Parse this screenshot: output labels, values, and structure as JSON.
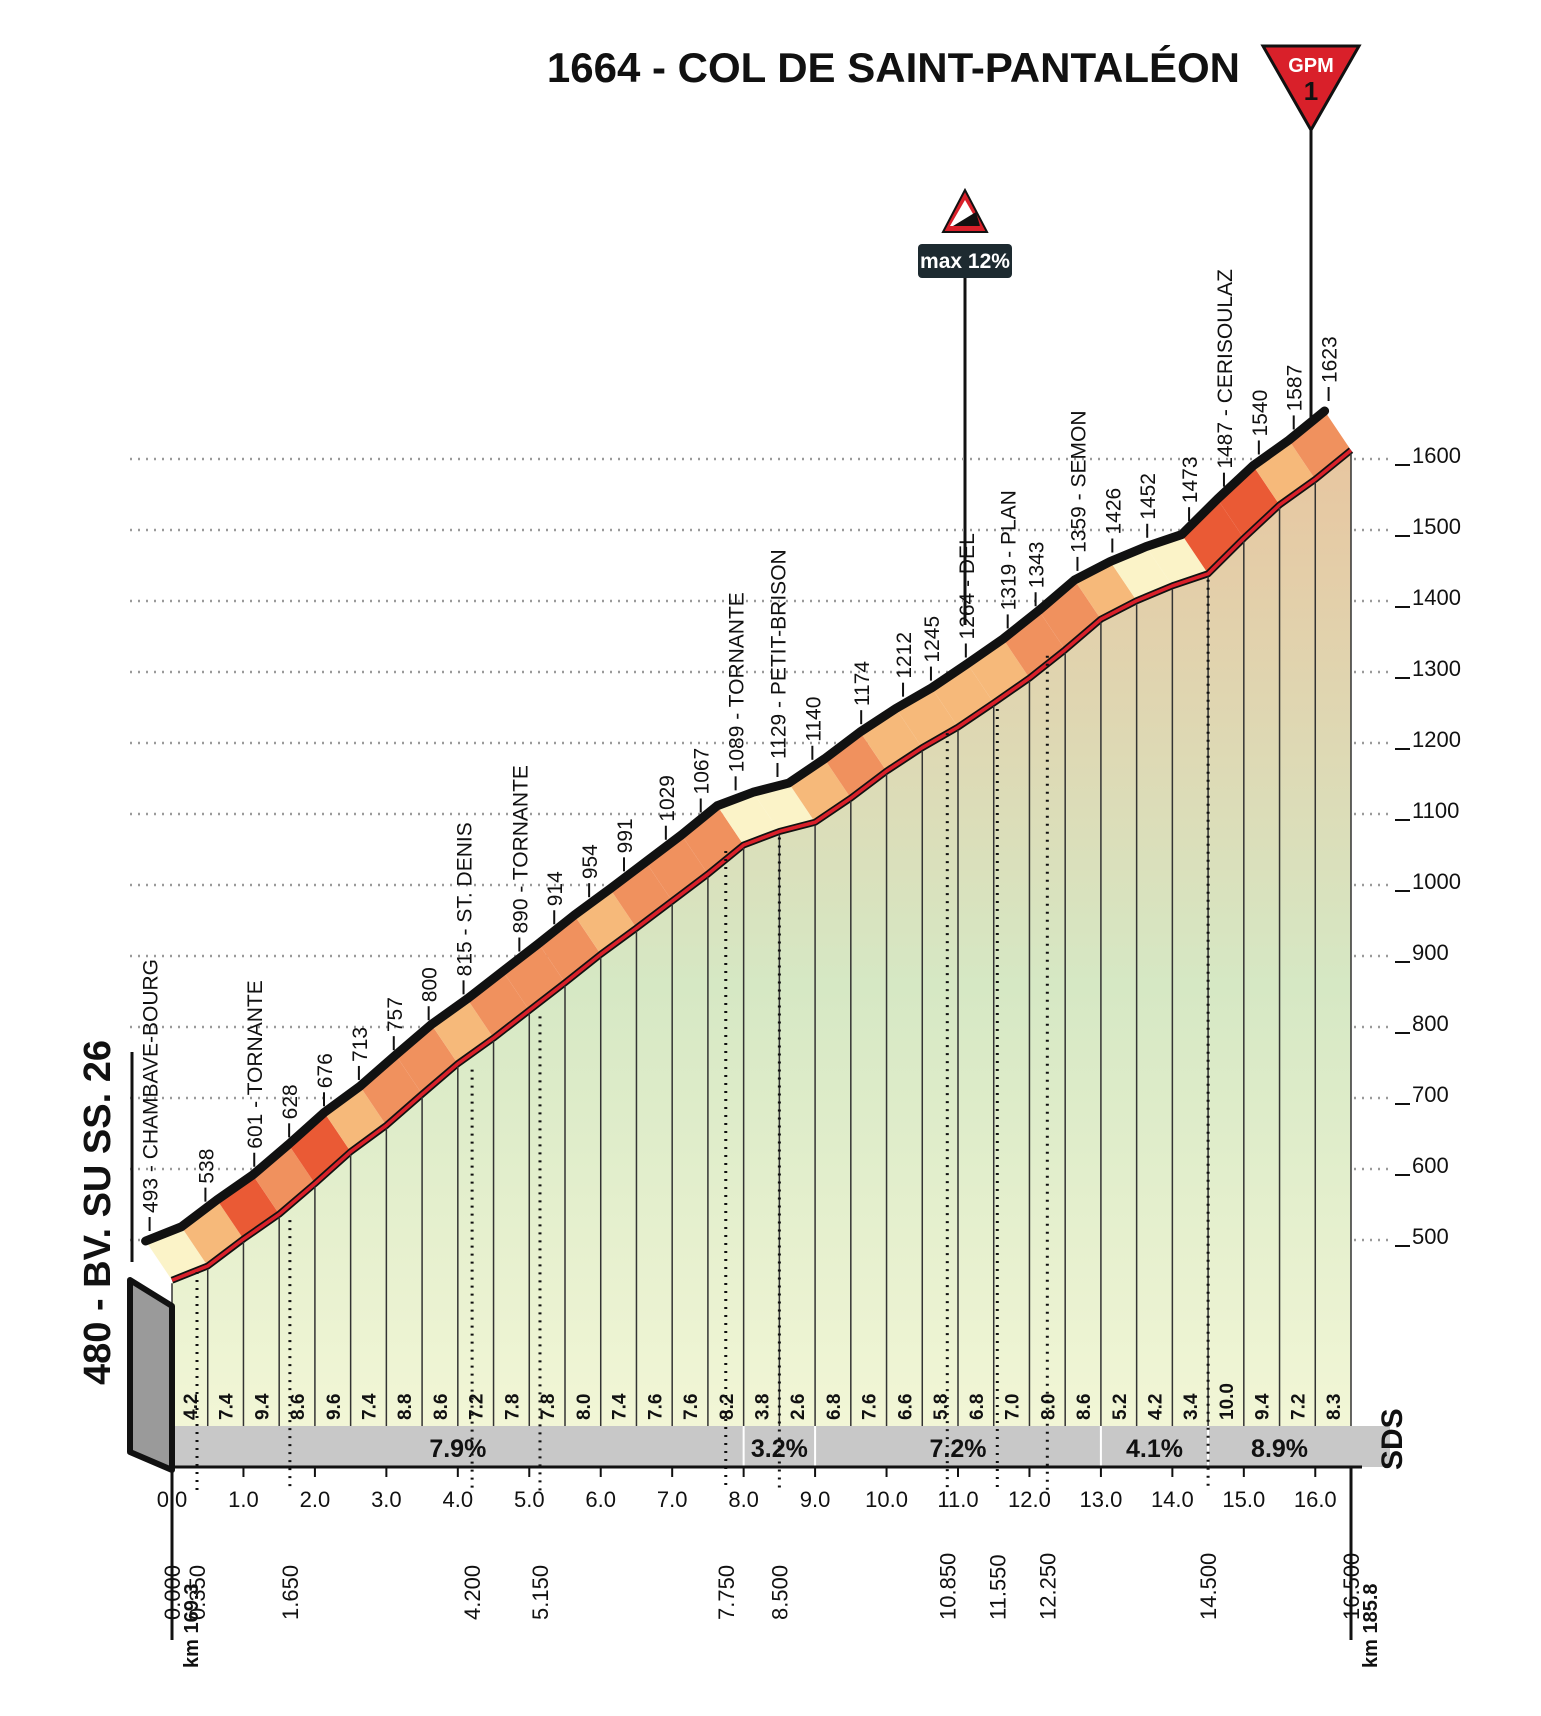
{
  "title": "1664 - COL DE SAINT-PANTALÉON",
  "gpm_badge": {
    "label": "GPM",
    "category": "1"
  },
  "max_gradient_label": "max 12%",
  "start_label": "480 - BV. SU SS. 26",
  "logo_text": "SDS",
  "colors": {
    "ink": "#111111",
    "road_red": "#d9202a",
    "band_light": "#fbf3c8",
    "band_mid": "#f6b97a",
    "band_orange": "#f0915e",
    "band_red": "#ea5a35",
    "summary_bar": "#c8c8c8",
    "area_top": "#e8c6a0",
    "area_mid": "#d6e8c4",
    "area_bottom": "#f2f6d6"
  },
  "chart_data": {
    "type": "area",
    "xlabel": "",
    "ylabel": "",
    "xlim": [
      0,
      16.5
    ],
    "ylim": [
      480,
      1664
    ],
    "grid": true,
    "x_ticks": [
      "0.0",
      "1.0",
      "2.0",
      "3.0",
      "4.0",
      "5.0",
      "6.0",
      "7.0",
      "8.0",
      "9.0",
      "10.0",
      "11.0",
      "12.0",
      "13.0",
      "14.0",
      "15.0",
      "16.0"
    ],
    "y_ticks": [
      "500",
      "600",
      "700",
      "800",
      "900",
      "1000",
      "1100",
      "1200",
      "1300",
      "1400",
      "1500",
      "1600"
    ],
    "profile": [
      {
        "km": 0.0,
        "alt": 480
      },
      {
        "km": 0.5,
        "alt": 500
      },
      {
        "km": 1.0,
        "alt": 538
      },
      {
        "km": 1.5,
        "alt": 573
      },
      {
        "km": 2.0,
        "alt": 616
      },
      {
        "km": 2.5,
        "alt": 661
      },
      {
        "km": 3.0,
        "alt": 698
      },
      {
        "km": 3.5,
        "alt": 742
      },
      {
        "km": 4.0,
        "alt": 785
      },
      {
        "km": 4.5,
        "alt": 821
      },
      {
        "km": 5.0,
        "alt": 860
      },
      {
        "km": 5.5,
        "alt": 899
      },
      {
        "km": 6.0,
        "alt": 939
      },
      {
        "km": 6.5,
        "alt": 976
      },
      {
        "km": 7.0,
        "alt": 1014
      },
      {
        "km": 7.5,
        "alt": 1052
      },
      {
        "km": 8.0,
        "alt": 1093
      },
      {
        "km": 8.5,
        "alt": 1112
      },
      {
        "km": 9.0,
        "alt": 1125
      },
      {
        "km": 9.5,
        "alt": 1159
      },
      {
        "km": 10.0,
        "alt": 1197
      },
      {
        "km": 10.5,
        "alt": 1230
      },
      {
        "km": 11.0,
        "alt": 1259
      },
      {
        "km": 11.5,
        "alt": 1293
      },
      {
        "km": 12.0,
        "alt": 1328
      },
      {
        "km": 12.5,
        "alt": 1368
      },
      {
        "km": 13.0,
        "alt": 1411
      },
      {
        "km": 13.5,
        "alt": 1437
      },
      {
        "km": 14.0,
        "alt": 1458
      },
      {
        "km": 14.5,
        "alt": 1475
      },
      {
        "km": 15.0,
        "alt": 1525
      },
      {
        "km": 15.5,
        "alt": 1572
      },
      {
        "km": 16.0,
        "alt": 1608
      },
      {
        "km": 16.5,
        "alt": 1649
      }
    ],
    "segment_gradients": [
      "4.2",
      "7.4",
      "9.4",
      "8.6",
      "9.6",
      "7.4",
      "8.8",
      "8.6",
      "7.2",
      "7.8",
      "7.8",
      "8.0",
      "7.4",
      "7.6",
      "7.6",
      "8.2",
      "3.8",
      "2.6",
      "6.8",
      "7.6",
      "6.6",
      "5.8",
      "6.8",
      "7.0",
      "8.0",
      "8.6",
      "5.2",
      "4.2",
      "3.4",
      "10.0",
      "9.4",
      "7.2",
      "8.3"
    ],
    "summary_gradients": [
      {
        "from_km": 0.0,
        "to_km": 8.0,
        "label": "7.9%"
      },
      {
        "from_km": 8.0,
        "to_km": 9.0,
        "label": "3.2%"
      },
      {
        "from_km": 9.0,
        "to_km": 13.0,
        "label": "7.2%"
      },
      {
        "from_km": 13.0,
        "to_km": 14.5,
        "label": "4.1%"
      },
      {
        "from_km": 14.5,
        "to_km": 16.5,
        "label": "8.9%"
      }
    ],
    "waypoints": [
      {
        "km": 0.0,
        "label": "493 - CHAMBAVE-BOURG"
      },
      {
        "km": 0.8,
        "label": "538"
      },
      {
        "km": 1.5,
        "label": "601 - TORNANTE"
      },
      {
        "km": 2.0,
        "label": "628"
      },
      {
        "km": 2.5,
        "label": "676"
      },
      {
        "km": 3.0,
        "label": "713"
      },
      {
        "km": 3.5,
        "label": "757"
      },
      {
        "km": 4.0,
        "label": "800"
      },
      {
        "km": 4.5,
        "label": "815 - ST. DENIS"
      },
      {
        "km": 5.3,
        "label": "890 - TORNANTE"
      },
      {
        "km": 5.8,
        "label": "914"
      },
      {
        "km": 6.3,
        "label": "954"
      },
      {
        "km": 6.8,
        "label": "991"
      },
      {
        "km": 7.4,
        "label": "1029"
      },
      {
        "km": 7.9,
        "label": "1067"
      },
      {
        "km": 8.4,
        "label": "1089 - TORNANTE"
      },
      {
        "km": 9.0,
        "label": "1129 - PETIT-BRISON"
      },
      {
        "km": 9.5,
        "label": "1140"
      },
      {
        "km": 10.2,
        "label": "1174"
      },
      {
        "km": 10.8,
        "label": "1212"
      },
      {
        "km": 11.2,
        "label": "1245"
      },
      {
        "km": 11.7,
        "label": "1264 - DEL"
      },
      {
        "km": 12.3,
        "label": "1319 - PLAN"
      },
      {
        "km": 12.7,
        "label": "1343"
      },
      {
        "km": 13.3,
        "label": "1359 - SEMON"
      },
      {
        "km": 13.8,
        "label": "1426"
      },
      {
        "km": 14.3,
        "label": "1452"
      },
      {
        "km": 14.9,
        "label": "1473"
      },
      {
        "km": 15.4,
        "label": "1487 - CERISOULAZ"
      },
      {
        "km": 15.9,
        "label": "1540"
      },
      {
        "km": 16.4,
        "label": "1587"
      },
      {
        "km": 16.9,
        "label": "1623"
      }
    ],
    "partial_km": [
      {
        "km": 0.0,
        "label": "0.000"
      },
      {
        "km": 0.35,
        "label": "0.350"
      },
      {
        "km": 1.65,
        "label": "1.650"
      },
      {
        "km": 4.2,
        "label": "4.200"
      },
      {
        "km": 5.15,
        "label": "5.150"
      },
      {
        "km": 7.75,
        "label": "7.750"
      },
      {
        "km": 8.5,
        "label": "8.500"
      },
      {
        "km": 10.85,
        "label": "10.850"
      },
      {
        "km": 11.55,
        "label": "11.550"
      },
      {
        "km": 12.25,
        "label": "12.250"
      },
      {
        "km": 14.5,
        "label": "14.500"
      },
      {
        "km": 16.5,
        "label": "16.500"
      }
    ],
    "race_km": {
      "start": "km 169.3",
      "end": "km 185.8"
    }
  }
}
